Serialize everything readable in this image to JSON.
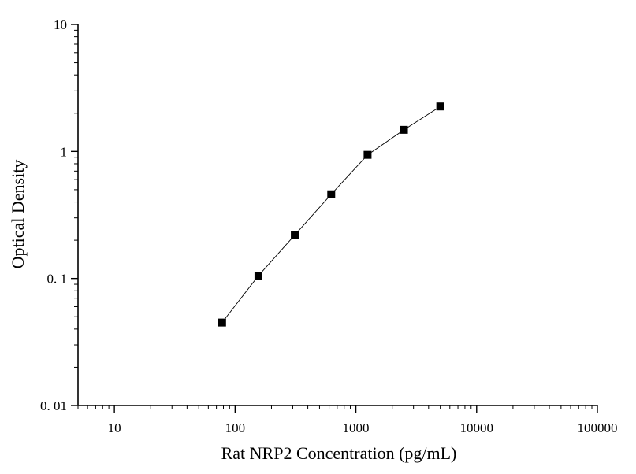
{
  "chart_data": {
    "type": "scatter",
    "title": "",
    "xlabel": "Rat NRP2 Concentration (pg/mL)",
    "ylabel": "Optical Density",
    "x_scale": "log",
    "y_scale": "log",
    "xlim": [
      5,
      100000
    ],
    "ylim": [
      0.01,
      10
    ],
    "x_ticks": [
      10,
      100,
      1000,
      10000,
      100000
    ],
    "x_tick_labels": [
      "10",
      "100",
      "1000",
      "10000",
      "100000"
    ],
    "y_ticks": [
      0.01,
      0.1,
      1,
      10
    ],
    "y_tick_labels": [
      "0. 01",
      "0. 1",
      "1",
      "10"
    ],
    "grid": false,
    "marker": "square",
    "line_connected": true,
    "color": "#000000",
    "series": [
      {
        "x": [
          78,
          156,
          312,
          625,
          1250,
          2500,
          5000
        ],
        "y": [
          0.045,
          0.105,
          0.22,
          0.46,
          0.94,
          1.48,
          2.26
        ]
      }
    ]
  }
}
